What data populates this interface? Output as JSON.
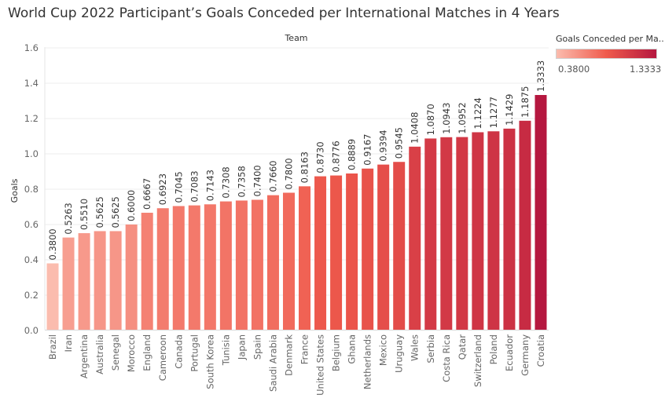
{
  "chart_data": {
    "type": "bar",
    "title": "World Cup 2022 Participant’s Goals Conceded per International Matches in 4 Years",
    "column_header": "Team",
    "ylabel": "Goals",
    "ylim": [
      0,
      1.6
    ],
    "yticks": [
      "0.0",
      "0.2",
      "0.4",
      "0.6",
      "0.8",
      "1.0",
      "1.2",
      "1.4",
      "1.6"
    ],
    "grid": true,
    "categories": [
      "Brazil",
      "Iran",
      "Argentina",
      "Australia",
      "Senegal",
      "Morocco",
      "England",
      "Cameroon",
      "Canada",
      "Portugal",
      "South Korea",
      "Tunisia",
      "Japan",
      "Spain",
      "Saudi Arabia",
      "Denmark",
      "France",
      "United States",
      "Belgium",
      "Ghana",
      "Netherlands",
      "Mexico",
      "Uruguay",
      "Wales",
      "Serbia",
      "Costa Rica",
      "Qatar",
      "Switzerland",
      "Poland",
      "Ecuador",
      "Germany",
      "Croatia"
    ],
    "values": [
      0.38,
      0.5263,
      0.551,
      0.5625,
      0.5625,
      0.6,
      0.6667,
      0.6923,
      0.7045,
      0.7083,
      0.7143,
      0.7308,
      0.7358,
      0.74,
      0.766,
      0.78,
      0.8163,
      0.873,
      0.8776,
      0.8889,
      0.9167,
      0.9394,
      0.9545,
      1.0408,
      1.087,
      1.0943,
      1.0952,
      1.1224,
      1.1277,
      1.1429,
      1.1875,
      1.3333
    ],
    "value_labels": [
      "0.3800",
      "0.5263",
      "0.5510",
      "0.5625",
      "0.5625",
      "0.6000",
      "0.6667",
      "0.6923",
      "0.7045",
      "0.7083",
      "0.7143",
      "0.7308",
      "0.7358",
      "0.7400",
      "0.7660",
      "0.7800",
      "0.8163",
      "0.8730",
      "0.8776",
      "0.8889",
      "0.9167",
      "0.9394",
      "0.9545",
      "1.0408",
      "1.0870",
      "1.0943",
      "1.0952",
      "1.1224",
      "1.1277",
      "1.1429",
      "1.1875",
      "1.3333"
    ],
    "legend": {
      "title": "Goals Conceded per Ma..",
      "min_label": "0.3800",
      "max_label": "1.3333",
      "min_value": 0.38,
      "max_value": 1.3333,
      "color_low": "#fbbcae",
      "color_mid": "#ef5a4c",
      "color_high": "#b5173f",
      "placement": "top-right"
    }
  }
}
